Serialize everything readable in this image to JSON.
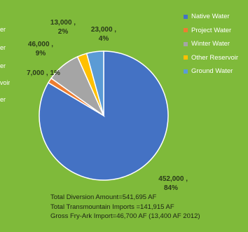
{
  "chart_data": {
    "type": "pie",
    "title": "",
    "slices": [
      {
        "name": "Native Water",
        "value": 452000,
        "value_label": "452,000 ,",
        "percent_label": "84%",
        "color": "#4472c4"
      },
      {
        "name": "Project Water",
        "value": 7000,
        "value_label": "7,000 ,",
        "percent_label": "1%",
        "color": "#ed7d31"
      },
      {
        "name": "Winter Water",
        "value": 46000,
        "value_label": "46,000 ,",
        "percent_label": "9%",
        "color": "#a5a5a5"
      },
      {
        "name": "Other Reservoir",
        "value": 13000,
        "value_label": "13,000 ,",
        "percent_label": "2%",
        "color": "#ffc000"
      },
      {
        "name": "Ground Water",
        "value": 23000,
        "value_label": "23,000 ,",
        "percent_label": "4%",
        "color": "#5b9bd5"
      }
    ],
    "legend_position": "right",
    "annotations": [
      "Total Diversion Amount=541,695 AF",
      "Total Transmountain Imports =141,915 AF",
      "Gross Fry-Ark Import=46,700 AF (13,400 AF 2012)"
    ]
  },
  "left_edge_fragments": [
    "er",
    "er",
    "er",
    "voir",
    "er"
  ]
}
